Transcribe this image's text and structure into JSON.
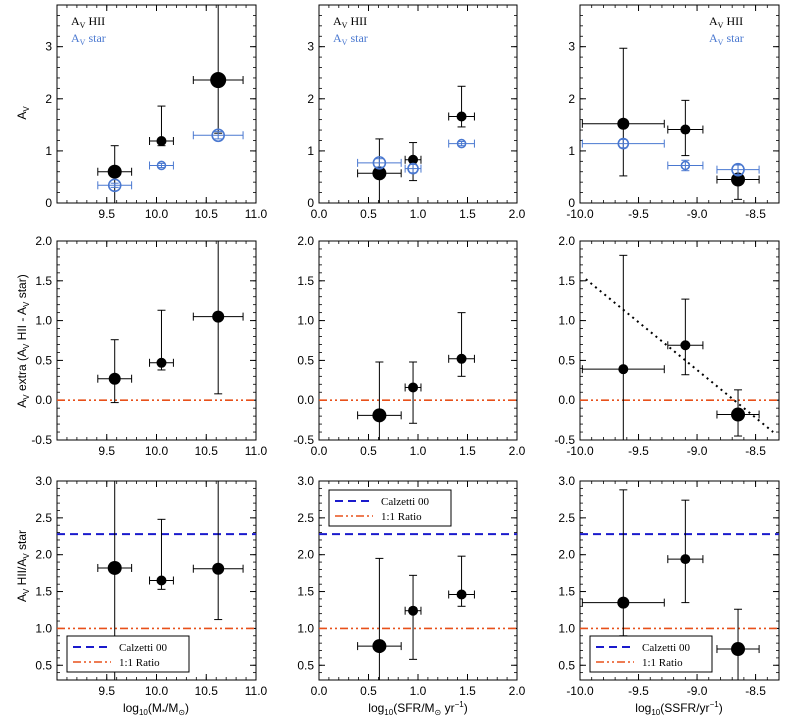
{
  "colors": {
    "hii": "#000000",
    "star": "#4a78d0",
    "calzetti": "#1a1acc",
    "ratio": "#e8501a",
    "fit": "#000000"
  },
  "legend": {
    "hii_text": "A_V HII",
    "star_text": "A_V star",
    "calzetti": "Calzetti 00",
    "ratio": "1:1 Ratio"
  },
  "x_labels": [
    "log10(M*/M⊙)",
    "log10(SFR/M⊙ yr−1)",
    "log10(SSFR/yr−1)"
  ],
  "y_labels": [
    "A_V",
    "A_V extra  (A_V HII - A_V star)",
    "A_V HII/A_V star"
  ],
  "chart_data": [
    {
      "type": "scatter",
      "panel": "row1-col1",
      "xlim": [
        9.0,
        11.0
      ],
      "ylim": [
        0,
        3.8
      ],
      "xticks": [
        9.5,
        10.0,
        10.5,
        11.0
      ],
      "yticks": [
        0,
        1,
        2,
        3
      ],
      "series": [
        {
          "name": "A_V HII",
          "x": [
            9.58,
            10.05,
            10.62
          ],
          "y": [
            0.6,
            1.19,
            2.36
          ],
          "xerr": [
            0.17,
            0.12,
            0.25
          ],
          "yerr_lo": [
            0.6,
            0.09,
            1.02
          ],
          "yerr_hi": [
            0.5,
            0.67,
            1.44
          ],
          "size": [
            7,
            5,
            8
          ]
        },
        {
          "name": "A_V star",
          "x": [
            9.58,
            10.05,
            10.62
          ],
          "y": [
            0.34,
            0.72,
            1.3
          ],
          "xerr": [
            0.17,
            0.12,
            0.25
          ],
          "yerr_lo": [
            0.04,
            0.04,
            0.07
          ],
          "yerr_hi": [
            0.04,
            0.04,
            0.07
          ],
          "size": [
            6,
            4,
            6
          ]
        }
      ]
    },
    {
      "type": "scatter",
      "panel": "row1-col2",
      "xlim": [
        0.0,
        2.0
      ],
      "ylim": [
        0,
        3.8
      ],
      "xticks": [
        0.0,
        0.5,
        1.0,
        1.5,
        2.0
      ],
      "yticks": [
        0,
        1,
        2,
        3
      ],
      "series": [
        {
          "name": "A_V HII",
          "x": [
            0.61,
            0.95,
            1.44
          ],
          "y": [
            0.57,
            0.83,
            1.66
          ],
          "xerr": [
            0.22,
            0.08,
            0.13
          ],
          "yerr_lo": [
            0.57,
            0.4,
            0.2
          ],
          "yerr_hi": [
            0.66,
            0.33,
            0.58
          ],
          "size": [
            7,
            5,
            5
          ]
        },
        {
          "name": "A_V star",
          "x": [
            0.61,
            0.95,
            1.44
          ],
          "y": [
            0.77,
            0.66,
            1.14
          ],
          "xerr": [
            0.22,
            0.08,
            0.13
          ],
          "yerr_lo": [
            0.08,
            0.08,
            0.04
          ],
          "yerr_hi": [
            0.08,
            0.08,
            0.04
          ],
          "size": [
            6,
            5,
            4
          ]
        }
      ]
    },
    {
      "type": "scatter",
      "panel": "row1-col3",
      "xlim": [
        -10.0,
        -8.3
      ],
      "ylim": [
        0,
        3.8
      ],
      "xticks": [
        -10.0,
        -9.5,
        -9.0,
        -8.5
      ],
      "yticks": [
        0,
        1,
        2,
        3
      ],
      "series": [
        {
          "name": "A_V HII",
          "x": [
            -9.63,
            -9.1,
            -8.65
          ],
          "y": [
            1.52,
            1.41,
            0.45
          ],
          "xerr": [
            0.35,
            0.15,
            0.18
          ],
          "yerr_lo": [
            1.0,
            0.5,
            0.38
          ],
          "yerr_hi": [
            1.45,
            0.56,
            0.28
          ],
          "size": [
            6,
            5,
            7
          ]
        },
        {
          "name": "A_V star",
          "x": [
            -9.63,
            -9.1,
            -8.65
          ],
          "y": [
            1.14,
            0.72,
            0.64
          ],
          "xerr": [
            0.35,
            0.15,
            0.18
          ],
          "yerr_lo": [
            0.08,
            0.1,
            0.09
          ],
          "yerr_hi": [
            0.08,
            0.1,
            0.09
          ],
          "size": [
            5,
            4,
            6
          ]
        }
      ]
    },
    {
      "type": "scatter",
      "panel": "row2-col1",
      "xlim": [
        9.0,
        11.0
      ],
      "ylim": [
        -0.5,
        2.0
      ],
      "xticks": [
        9.5,
        10.0,
        10.5,
        11.0
      ],
      "yticks": [
        -0.5,
        0.0,
        0.5,
        1.0,
        1.5,
        2.0
      ],
      "ref_line": 0.0,
      "series": [
        {
          "name": "A_V extra",
          "x": [
            9.58,
            10.05,
            10.62
          ],
          "y": [
            0.27,
            0.47,
            1.05
          ],
          "xerr": [
            0.17,
            0.12,
            0.25
          ],
          "yerr_lo": [
            0.3,
            0.09,
            0.97
          ],
          "yerr_hi": [
            0.49,
            0.66,
            0.95
          ],
          "size": [
            6,
            5,
            6
          ]
        }
      ]
    },
    {
      "type": "scatter",
      "panel": "row2-col2",
      "xlim": [
        0.0,
        2.0
      ],
      "ylim": [
        -0.5,
        2.0
      ],
      "xticks": [
        0.0,
        0.5,
        1.0,
        1.5,
        2.0
      ],
      "yticks": [
        -0.5,
        0.0,
        0.5,
        1.0,
        1.5,
        2.0
      ],
      "ref_line": 0.0,
      "series": [
        {
          "name": "A_V extra",
          "x": [
            0.61,
            0.95,
            1.44
          ],
          "y": [
            -0.19,
            0.16,
            0.52
          ],
          "xerr": [
            0.22,
            0.08,
            0.13
          ],
          "yerr_lo": [
            0.31,
            0.45,
            0.22
          ],
          "yerr_hi": [
            0.67,
            0.32,
            0.58
          ],
          "size": [
            7,
            5,
            5
          ]
        }
      ]
    },
    {
      "type": "scatter",
      "panel": "row2-col3",
      "xlim": [
        -10.0,
        -8.3
      ],
      "ylim": [
        -0.5,
        2.0
      ],
      "xticks": [
        -10.0,
        -9.5,
        -9.0,
        -8.5
      ],
      "yticks": [
        -0.5,
        0.0,
        0.5,
        1.0,
        1.5,
        2.0
      ],
      "ref_line": 0.0,
      "fit_line": {
        "x": [
          -9.95,
          -8.35
        ],
        "y": [
          1.52,
          -0.4
        ]
      },
      "series": [
        {
          "name": "A_V extra",
          "x": [
            -9.63,
            -9.1,
            -8.65
          ],
          "y": [
            0.39,
            0.69,
            -0.18
          ],
          "xerr": [
            0.35,
            0.15,
            0.18
          ],
          "yerr_lo": [
            0.89,
            0.37,
            0.27
          ],
          "yerr_hi": [
            1.43,
            0.58,
            0.31
          ],
          "size": [
            5,
            5,
            7
          ]
        }
      ]
    },
    {
      "type": "scatter",
      "panel": "row3-col1",
      "xlim": [
        9.0,
        11.0
      ],
      "ylim": [
        0.3,
        3.0
      ],
      "xticks": [
        9.5,
        10.0,
        10.5,
        11.0
      ],
      "yticks": [
        0.5,
        1.0,
        1.5,
        2.0,
        2.5,
        3.0
      ],
      "ref_line": 1.0,
      "calzetti_line": 2.28,
      "legend_pos": "bottom-left",
      "series": [
        {
          "name": "A_V HII/A_V star",
          "x": [
            9.58,
            10.05,
            10.62
          ],
          "y": [
            1.82,
            1.65,
            1.81
          ],
          "xerr": [
            0.17,
            0.12,
            0.25
          ],
          "yerr_lo": [
            1.52,
            0.12,
            0.69
          ],
          "yerr_hi": [
            1.18,
            0.83,
            1.19
          ],
          "size": [
            7,
            5,
            6
          ]
        }
      ]
    },
    {
      "type": "scatter",
      "panel": "row3-col2",
      "xlim": [
        0.0,
        2.0
      ],
      "ylim": [
        0.3,
        3.0
      ],
      "xticks": [
        0.0,
        0.5,
        1.0,
        1.5,
        2.0
      ],
      "yticks": [
        0.5,
        1.0,
        1.5,
        2.0,
        2.5,
        3.0
      ],
      "ref_line": 1.0,
      "calzetti_line": 2.28,
      "legend_pos": "top-left",
      "series": [
        {
          "name": "A_V HII/A_V star",
          "x": [
            0.61,
            0.95,
            1.44
          ],
          "y": [
            0.76,
            1.24,
            1.46
          ],
          "xerr": [
            0.22,
            0.08,
            0.13
          ],
          "yerr_lo": [
            0.46,
            0.66,
            0.16
          ],
          "yerr_hi": [
            1.19,
            0.48,
            0.52
          ],
          "size": [
            7,
            5,
            5
          ]
        }
      ]
    },
    {
      "type": "scatter",
      "panel": "row3-col3",
      "xlim": [
        -10.0,
        -8.3
      ],
      "ylim": [
        0.3,
        3.0
      ],
      "xticks": [
        -10.0,
        -9.5,
        -9.0,
        -8.5
      ],
      "yticks": [
        0.5,
        1.0,
        1.5,
        2.0,
        2.5,
        3.0
      ],
      "ref_line": 1.0,
      "calzetti_line": 2.28,
      "legend_pos": "bottom-left",
      "series": [
        {
          "name": "A_V HII/A_V star",
          "x": [
            -9.63,
            -9.1,
            -8.65
          ],
          "y": [
            1.35,
            1.94,
            0.72
          ],
          "xerr": [
            0.35,
            0.15,
            0.18
          ],
          "yerr_lo": [
            0.45,
            0.59,
            0.42
          ],
          "yerr_hi": [
            1.53,
            0.8,
            0.54
          ],
          "size": [
            6,
            5,
            7
          ]
        }
      ]
    }
  ]
}
